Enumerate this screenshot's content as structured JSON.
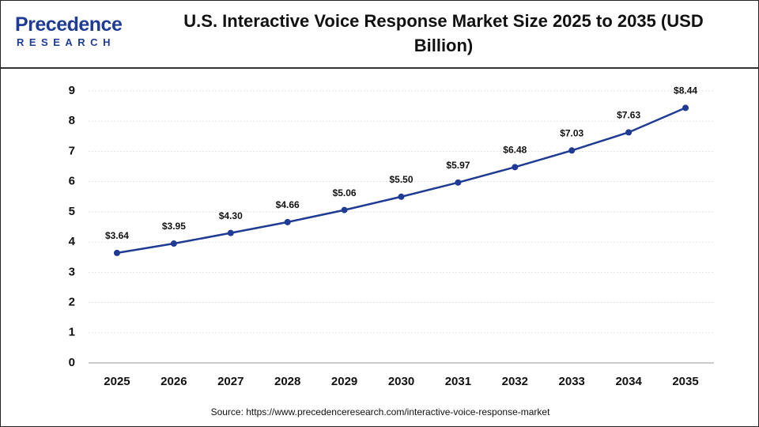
{
  "logo": {
    "name": "Precedence",
    "tagline": "RESEARCH"
  },
  "chart_data": {
    "type": "line",
    "title": "U.S. Interactive Voice Response Market Size 2025 to 2035 (USD Billion)",
    "categories": [
      "2025",
      "2026",
      "2027",
      "2028",
      "2029",
      "2030",
      "2031",
      "2032",
      "2033",
      "2034",
      "2035"
    ],
    "series": [
      {
        "color": "#1f3b94",
        "values": [
          3.64,
          3.95,
          4.3,
          4.66,
          5.06,
          5.5,
          5.97,
          6.48,
          7.03,
          7.63,
          8.44
        ],
        "value_labels": [
          "$3.64",
          "$3.95",
          "$4.30",
          "$4.66",
          "$5.06",
          "$5.50",
          "$5.97",
          "$6.48",
          "$7.03",
          "$7.63",
          "$8.44"
        ]
      }
    ],
    "ylim": [
      0,
      9
    ],
    "yticks": [
      0,
      1,
      2,
      3,
      4,
      5,
      6,
      7,
      8,
      9
    ],
    "grid": true,
    "source": "Source: https://www.precedenceresearch.com/interactive-voice-response-market"
  }
}
